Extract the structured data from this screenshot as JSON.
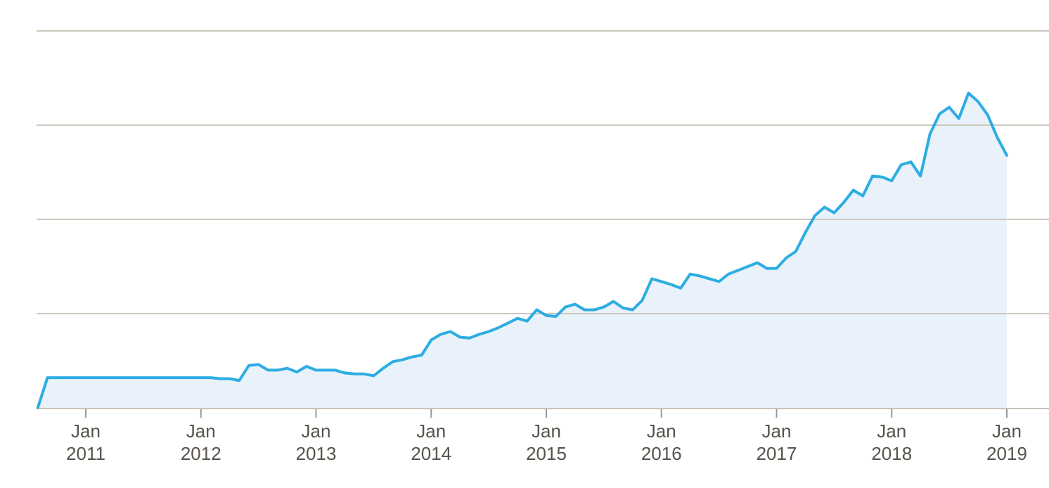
{
  "colors": {
    "line": "#2dade2",
    "fill": "#e9f2fa",
    "gridline": "#cdc7bc",
    "axis_line": "#c9c2b7",
    "tick": "#98989a",
    "label": "#57534b",
    "background": "#ffffff"
  },
  "chart_data": {
    "type": "area",
    "title": "",
    "subtitle": "",
    "legend": "none",
    "grid": "horizontal gridlines only",
    "x_unit": "time, monthly points",
    "y_unit": "unlabeled axis; values expressed in gridline units (gridlines at 1, 2, 3, 4)",
    "xlim": [
      2010.583,
      2019.37
    ],
    "ylim": [
      0,
      4.35
    ],
    "gridlines_y": [
      1,
      2,
      3,
      4
    ],
    "x_ticks": [
      {
        "month": "Jan",
        "year": "2011",
        "x": 2011
      },
      {
        "month": "Jan",
        "year": "2012",
        "x": 2012
      },
      {
        "month": "Jan",
        "year": "2013",
        "x": 2013
      },
      {
        "month": "Jan",
        "year": "2014",
        "x": 2014
      },
      {
        "month": "Jan",
        "year": "2015",
        "x": 2015
      },
      {
        "month": "Jan",
        "year": "2016",
        "x": 2016
      },
      {
        "month": "Jan",
        "year": "2017",
        "x": 2017
      },
      {
        "month": "Jan",
        "year": "2018",
        "x": 2018
      },
      {
        "month": "Jan",
        "year": "2019",
        "x": 2019
      }
    ],
    "points": [
      [
        2010.583,
        0.0
      ],
      [
        2010.667,
        0.32
      ],
      [
        2010.75,
        0.32
      ],
      [
        2010.833,
        0.32
      ],
      [
        2010.917,
        0.32
      ],
      [
        2011.0,
        0.32
      ],
      [
        2011.083,
        0.32
      ],
      [
        2011.167,
        0.32
      ],
      [
        2011.25,
        0.32
      ],
      [
        2011.333,
        0.32
      ],
      [
        2011.417,
        0.32
      ],
      [
        2011.5,
        0.32
      ],
      [
        2011.583,
        0.32
      ],
      [
        2011.667,
        0.32
      ],
      [
        2011.75,
        0.32
      ],
      [
        2011.833,
        0.32
      ],
      [
        2011.917,
        0.32
      ],
      [
        2012.0,
        0.32
      ],
      [
        2012.083,
        0.32
      ],
      [
        2012.167,
        0.31
      ],
      [
        2012.25,
        0.31
      ],
      [
        2012.333,
        0.29
      ],
      [
        2012.417,
        0.45
      ],
      [
        2012.5,
        0.46
      ],
      [
        2012.583,
        0.4
      ],
      [
        2012.667,
        0.4
      ],
      [
        2012.75,
        0.42
      ],
      [
        2012.833,
        0.38
      ],
      [
        2012.917,
        0.44
      ],
      [
        2013.0,
        0.4
      ],
      [
        2013.083,
        0.4
      ],
      [
        2013.167,
        0.4
      ],
      [
        2013.25,
        0.37
      ],
      [
        2013.333,
        0.36
      ],
      [
        2013.417,
        0.36
      ],
      [
        2013.5,
        0.34
      ],
      [
        2013.583,
        0.42
      ],
      [
        2013.667,
        0.49
      ],
      [
        2013.75,
        0.51
      ],
      [
        2013.833,
        0.54
      ],
      [
        2013.917,
        0.56
      ],
      [
        2014.0,
        0.72
      ],
      [
        2014.083,
        0.78
      ],
      [
        2014.167,
        0.81
      ],
      [
        2014.25,
        0.75
      ],
      [
        2014.333,
        0.74
      ],
      [
        2014.417,
        0.78
      ],
      [
        2014.5,
        0.81
      ],
      [
        2014.583,
        0.85
      ],
      [
        2014.667,
        0.9
      ],
      [
        2014.75,
        0.95
      ],
      [
        2014.833,
        0.92
      ],
      [
        2014.917,
        1.04
      ],
      [
        2015.0,
        0.98
      ],
      [
        2015.083,
        0.97
      ],
      [
        2015.167,
        1.07
      ],
      [
        2015.25,
        1.1
      ],
      [
        2015.333,
        1.04
      ],
      [
        2015.417,
        1.04
      ],
      [
        2015.5,
        1.07
      ],
      [
        2015.583,
        1.13
      ],
      [
        2015.667,
        1.06
      ],
      [
        2015.75,
        1.04
      ],
      [
        2015.833,
        1.14
      ],
      [
        2015.917,
        1.37
      ],
      [
        2016.0,
        1.34
      ],
      [
        2016.083,
        1.31
      ],
      [
        2016.167,
        1.27
      ],
      [
        2016.25,
        1.42
      ],
      [
        2016.333,
        1.4
      ],
      [
        2016.417,
        1.37
      ],
      [
        2016.5,
        1.34
      ],
      [
        2016.583,
        1.42
      ],
      [
        2016.667,
        1.46
      ],
      [
        2016.75,
        1.5
      ],
      [
        2016.833,
        1.54
      ],
      [
        2016.917,
        1.48
      ],
      [
        2017.0,
        1.48
      ],
      [
        2017.083,
        1.59
      ],
      [
        2017.167,
        1.66
      ],
      [
        2017.25,
        1.86
      ],
      [
        2017.333,
        2.04
      ],
      [
        2017.417,
        2.13
      ],
      [
        2017.5,
        2.07
      ],
      [
        2017.583,
        2.18
      ],
      [
        2017.667,
        2.31
      ],
      [
        2017.75,
        2.25
      ],
      [
        2017.833,
        2.46
      ],
      [
        2017.917,
        2.45
      ],
      [
        2018.0,
        2.41
      ],
      [
        2018.083,
        2.58
      ],
      [
        2018.167,
        2.61
      ],
      [
        2018.25,
        2.46
      ],
      [
        2018.333,
        2.91
      ],
      [
        2018.417,
        3.12
      ],
      [
        2018.5,
        3.19
      ],
      [
        2018.583,
        3.07
      ],
      [
        2018.667,
        3.34
      ],
      [
        2018.75,
        3.25
      ],
      [
        2018.833,
        3.11
      ],
      [
        2018.917,
        2.87
      ],
      [
        2019.0,
        2.68
      ]
    ]
  }
}
